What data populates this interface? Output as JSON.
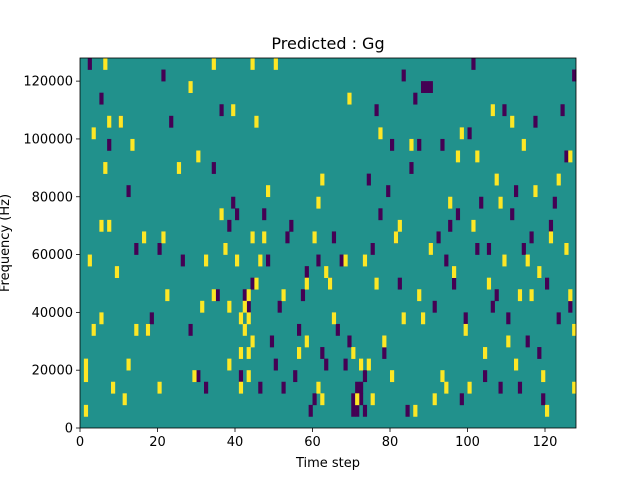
{
  "chart_data": {
    "type": "heatmap",
    "title": "Predicted : Gg",
    "xlabel": "Time step",
    "ylabel": "Frequency (Hz)",
    "xlim": [
      0,
      128
    ],
    "ylim": [
      0,
      128000
    ],
    "x_ticks": [
      0,
      20,
      40,
      60,
      80,
      100,
      120
    ],
    "y_ticks": [
      0,
      20000,
      40000,
      60000,
      80000,
      100000,
      120000
    ],
    "colormap": "viridis",
    "background_value": 0,
    "colors": {
      "background": "#21918c",
      "high": "#fde725",
      "low": "#440154"
    },
    "bin_width_x": 1,
    "bin_height_y": 4000,
    "high_cells": [
      [
        1,
        4000
      ],
      [
        1,
        16000
      ],
      [
        1,
        20000
      ],
      [
        2,
        56000
      ],
      [
        3,
        32000
      ],
      [
        3,
        100000
      ],
      [
        5,
        36000
      ],
      [
        5,
        68000
      ],
      [
        6,
        88000
      ],
      [
        6,
        124000
      ],
      [
        7,
        104000
      ],
      [
        7,
        68000
      ],
      [
        8,
        12000
      ],
      [
        9,
        52000
      ],
      [
        10,
        104000
      ],
      [
        11,
        8000
      ],
      [
        12,
        20000
      ],
      [
        13,
        96000
      ],
      [
        14,
        32000
      ],
      [
        16,
        64000
      ],
      [
        17,
        32000
      ],
      [
        20,
        12000
      ],
      [
        21,
        64000
      ],
      [
        22,
        44000
      ],
      [
        25,
        88000
      ],
      [
        28,
        116000
      ],
      [
        29,
        16000
      ],
      [
        30,
        92000
      ],
      [
        31,
        40000
      ],
      [
        32,
        56000
      ],
      [
        34,
        44000
      ],
      [
        34,
        124000
      ],
      [
        36,
        72000
      ],
      [
        37,
        60000
      ],
      [
        38,
        20000
      ],
      [
        38,
        40000
      ],
      [
        39,
        108000
      ],
      [
        40,
        56000
      ],
      [
        41,
        12000
      ],
      [
        41,
        24000
      ],
      [
        41,
        36000
      ],
      [
        42,
        32000
      ],
      [
        42,
        40000
      ],
      [
        43,
        16000
      ],
      [
        43,
        24000
      ],
      [
        43,
        36000
      ],
      [
        43,
        44000
      ],
      [
        44,
        28000
      ],
      [
        44,
        64000
      ],
      [
        44,
        124000
      ],
      [
        45,
        104000
      ],
      [
        45,
        48000
      ],
      [
        46,
        56000
      ],
      [
        47,
        64000
      ],
      [
        48,
        80000
      ],
      [
        50,
        124000
      ],
      [
        52,
        44000
      ],
      [
        56,
        24000
      ],
      [
        58,
        28000
      ],
      [
        58,
        48000
      ],
      [
        60,
        64000
      ],
      [
        61,
        12000
      ],
      [
        61,
        76000
      ],
      [
        62,
        8000
      ],
      [
        62,
        84000
      ],
      [
        63,
        52000
      ],
      [
        64,
        48000
      ],
      [
        65,
        36000
      ],
      [
        68,
        56000
      ],
      [
        69,
        112000
      ],
      [
        70,
        24000
      ],
      [
        71,
        8000
      ],
      [
        72,
        20000
      ],
      [
        73,
        56000
      ],
      [
        74,
        20000
      ],
      [
        75,
        8000
      ],
      [
        76,
        48000
      ],
      [
        77,
        100000
      ],
      [
        78,
        28000
      ],
      [
        80,
        16000
      ],
      [
        81,
        64000
      ],
      [
        82,
        68000
      ],
      [
        83,
        36000
      ],
      [
        85,
        96000
      ],
      [
        86,
        4000
      ],
      [
        87,
        44000
      ],
      [
        88,
        36000
      ],
      [
        90,
        60000
      ],
      [
        91,
        8000
      ],
      [
        93,
        16000
      ],
      [
        94,
        12000
      ],
      [
        95,
        76000
      ],
      [
        96,
        52000
      ],
      [
        97,
        92000
      ],
      [
        98,
        100000
      ],
      [
        99,
        32000
      ],
      [
        100,
        12000
      ],
      [
        101,
        68000
      ],
      [
        102,
        92000
      ],
      [
        104,
        24000
      ],
      [
        105,
        48000
      ],
      [
        106,
        108000
      ],
      [
        107,
        84000
      ],
      [
        108,
        76000
      ],
      [
        109,
        56000
      ],
      [
        110,
        28000
      ],
      [
        111,
        104000
      ],
      [
        112,
        20000
      ],
      [
        113,
        44000
      ],
      [
        114,
        96000
      ],
      [
        115,
        56000
      ],
      [
        116,
        44000
      ],
      [
        117,
        80000
      ],
      [
        118,
        52000
      ],
      [
        119,
        16000
      ],
      [
        120,
        4000
      ],
      [
        121,
        64000
      ],
      [
        123,
        84000
      ],
      [
        125,
        60000
      ],
      [
        126,
        44000
      ],
      [
        126,
        92000
      ],
      [
        127,
        12000
      ],
      [
        127,
        32000
      ]
    ],
    "low_cells": [
      [
        2,
        124000
      ],
      [
        5,
        112000
      ],
      [
        7,
        96000
      ],
      [
        10,
        104000
      ],
      [
        12,
        80000
      ],
      [
        14,
        60000
      ],
      [
        17,
        32000
      ],
      [
        18,
        36000
      ],
      [
        20,
        60000
      ],
      [
        21,
        120000
      ],
      [
        23,
        104000
      ],
      [
        26,
        56000
      ],
      [
        28,
        32000
      ],
      [
        30,
        16000
      ],
      [
        32,
        12000
      ],
      [
        34,
        88000
      ],
      [
        35,
        44000
      ],
      [
        36,
        108000
      ],
      [
        38,
        68000
      ],
      [
        39,
        76000
      ],
      [
        40,
        72000
      ],
      [
        41,
        16000
      ],
      [
        42,
        44000
      ],
      [
        43,
        40000
      ],
      [
        44,
        48000
      ],
      [
        46,
        12000
      ],
      [
        47,
        72000
      ],
      [
        48,
        56000
      ],
      [
        49,
        28000
      ],
      [
        50,
        20000
      ],
      [
        51,
        40000
      ],
      [
        52,
        12000
      ],
      [
        53,
        64000
      ],
      [
        54,
        68000
      ],
      [
        55,
        16000
      ],
      [
        56,
        32000
      ],
      [
        57,
        44000
      ],
      [
        58,
        52000
      ],
      [
        59,
        4000
      ],
      [
        60,
        8000
      ],
      [
        61,
        56000
      ],
      [
        62,
        24000
      ],
      [
        63,
        20000
      ],
      [
        64,
        48000
      ],
      [
        65,
        64000
      ],
      [
        66,
        32000
      ],
      [
        67,
        56000
      ],
      [
        68,
        20000
      ],
      [
        69,
        28000
      ],
      [
        70,
        8000
      ],
      [
        70,
        4000
      ],
      [
        71,
        12000
      ],
      [
        71,
        4000
      ],
      [
        72,
        8000
      ],
      [
        72,
        12000
      ],
      [
        73,
        4000
      ],
      [
        73,
        16000
      ],
      [
        74,
        84000
      ],
      [
        75,
        60000
      ],
      [
        76,
        108000
      ],
      [
        77,
        72000
      ],
      [
        78,
        24000
      ],
      [
        79,
        80000
      ],
      [
        80,
        96000
      ],
      [
        81,
        64000
      ],
      [
        82,
        48000
      ],
      [
        83,
        120000
      ],
      [
        84,
        4000
      ],
      [
        85,
        88000
      ],
      [
        86,
        112000
      ],
      [
        87,
        96000
      ],
      [
        88,
        116000
      ],
      [
        89,
        116000
      ],
      [
        90,
        116000
      ],
      [
        91,
        40000
      ],
      [
        92,
        64000
      ],
      [
        93,
        96000
      ],
      [
        94,
        56000
      ],
      [
        95,
        68000
      ],
      [
        96,
        48000
      ],
      [
        97,
        72000
      ],
      [
        98,
        8000
      ],
      [
        99,
        36000
      ],
      [
        100,
        100000
      ],
      [
        101,
        124000
      ],
      [
        102,
        60000
      ],
      [
        103,
        76000
      ],
      [
        104,
        16000
      ],
      [
        105,
        60000
      ],
      [
        106,
        40000
      ],
      [
        107,
        44000
      ],
      [
        108,
        12000
      ],
      [
        109,
        108000
      ],
      [
        110,
        36000
      ],
      [
        111,
        72000
      ],
      [
        112,
        80000
      ],
      [
        113,
        12000
      ],
      [
        114,
        60000
      ],
      [
        115,
        28000
      ],
      [
        116,
        64000
      ],
      [
        117,
        104000
      ],
      [
        118,
        24000
      ],
      [
        119,
        8000
      ],
      [
        120,
        48000
      ],
      [
        121,
        68000
      ],
      [
        122,
        76000
      ],
      [
        123,
        36000
      ],
      [
        124,
        108000
      ],
      [
        125,
        92000
      ],
      [
        126,
        40000
      ],
      [
        127,
        120000
      ]
    ]
  }
}
